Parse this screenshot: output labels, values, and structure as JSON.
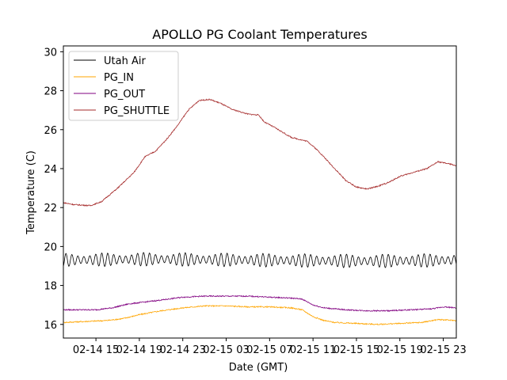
{
  "chart_data": {
    "type": "line",
    "title": "APOLLO PG Coolant Temperatures",
    "xlabel": "Date (GMT)",
    "ylabel": "Temperature (C)",
    "x_range_hours": [
      12.0,
      48.2
    ],
    "ylim": [
      15.3,
      30.3
    ],
    "y_ticks": [
      16,
      18,
      20,
      22,
      24,
      26,
      28,
      30
    ],
    "x_ticks": [
      {
        "hour": 15,
        "label": "02-14 15"
      },
      {
        "hour": 19,
        "label": "02-14 19"
      },
      {
        "hour": 23,
        "label": "02-14 23"
      },
      {
        "hour": 27,
        "label": "02-15 03"
      },
      {
        "hour": 31,
        "label": "02-15 07"
      },
      {
        "hour": 35,
        "label": "02-15 11"
      },
      {
        "hour": 39,
        "label": "02-15 15"
      },
      {
        "hour": 43,
        "label": "02-15 19"
      },
      {
        "hour": 47,
        "label": "02-15 23"
      }
    ],
    "legend_position": "upper-left",
    "series": [
      {
        "name": "Utah Air",
        "color": "#000000",
        "oscillating": true,
        "oscillation_amplitude": 0.35,
        "oscillation_period_hours": 0.55,
        "points": [
          [
            12.0,
            19.3
          ],
          [
            20.0,
            19.35
          ],
          [
            30.0,
            19.3
          ],
          [
            40.0,
            19.25
          ],
          [
            48.2,
            19.3
          ]
        ]
      },
      {
        "name": "PG_IN",
        "color": "#ffa500",
        "points": [
          [
            12.0,
            16.1
          ],
          [
            16.0,
            16.2
          ],
          [
            17.5,
            16.3
          ],
          [
            19.0,
            16.5
          ],
          [
            21.0,
            16.7
          ],
          [
            23.0,
            16.85
          ],
          [
            25.0,
            16.95
          ],
          [
            27.0,
            16.95
          ],
          [
            29.0,
            16.9
          ],
          [
            31.0,
            16.9
          ],
          [
            33.0,
            16.85
          ],
          [
            34.0,
            16.75
          ],
          [
            35.0,
            16.4
          ],
          [
            36.0,
            16.2
          ],
          [
            37.0,
            16.1
          ],
          [
            39.0,
            16.05
          ],
          [
            41.0,
            16.0
          ],
          [
            43.0,
            16.05
          ],
          [
            45.0,
            16.1
          ],
          [
            46.5,
            16.25
          ],
          [
            48.2,
            16.2
          ]
        ]
      },
      {
        "name": "PG_OUT",
        "color": "#800080",
        "points": [
          [
            12.0,
            16.75
          ],
          [
            15.0,
            16.75
          ],
          [
            16.5,
            16.85
          ],
          [
            18.0,
            17.05
          ],
          [
            21.0,
            17.25
          ],
          [
            23.0,
            17.4
          ],
          [
            25.0,
            17.45
          ],
          [
            27.0,
            17.45
          ],
          [
            29.0,
            17.45
          ],
          [
            31.0,
            17.4
          ],
          [
            33.0,
            17.35
          ],
          [
            34.0,
            17.3
          ],
          [
            35.0,
            17.0
          ],
          [
            36.0,
            16.85
          ],
          [
            38.0,
            16.75
          ],
          [
            40.0,
            16.7
          ],
          [
            42.0,
            16.7
          ],
          [
            44.0,
            16.75
          ],
          [
            46.0,
            16.8
          ],
          [
            47.0,
            16.9
          ],
          [
            48.2,
            16.85
          ]
        ]
      },
      {
        "name": "PG_SHUTTLE",
        "color": "#a52a2a",
        "points": [
          [
            12.0,
            22.25
          ],
          [
            13.0,
            22.15
          ],
          [
            14.5,
            22.1
          ],
          [
            15.5,
            22.3
          ],
          [
            17.0,
            23.0
          ],
          [
            18.5,
            23.8
          ],
          [
            19.5,
            24.6
          ],
          [
            20.5,
            24.9
          ],
          [
            21.5,
            25.5
          ],
          [
            22.5,
            26.2
          ],
          [
            23.5,
            27.0
          ],
          [
            24.5,
            27.5
          ],
          [
            25.5,
            27.55
          ],
          [
            26.5,
            27.35
          ],
          [
            27.5,
            27.05
          ],
          [
            29.0,
            26.8
          ],
          [
            30.0,
            26.75
          ],
          [
            30.5,
            26.4
          ],
          [
            31.5,
            26.1
          ],
          [
            33.0,
            25.6
          ],
          [
            34.5,
            25.4
          ],
          [
            35.5,
            24.9
          ],
          [
            37.0,
            24.0
          ],
          [
            38.0,
            23.4
          ],
          [
            39.0,
            23.05
          ],
          [
            40.0,
            22.95
          ],
          [
            41.0,
            23.1
          ],
          [
            42.0,
            23.3
          ],
          [
            43.0,
            23.6
          ],
          [
            44.5,
            23.85
          ],
          [
            45.5,
            24.0
          ],
          [
            46.5,
            24.35
          ],
          [
            47.5,
            24.25
          ],
          [
            48.2,
            24.15
          ]
        ]
      }
    ]
  }
}
